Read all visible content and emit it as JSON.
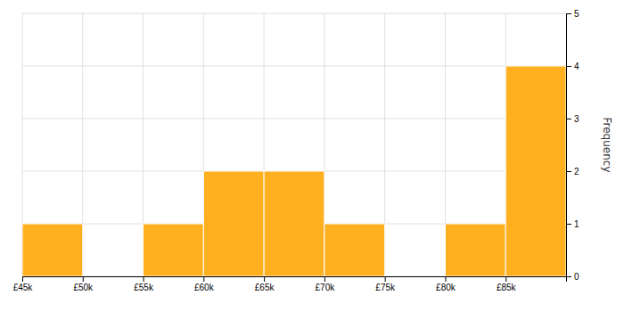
{
  "chart_data": {
    "type": "histogram",
    "bins": [
      45000,
      50000,
      55000,
      60000,
      65000,
      70000,
      75000,
      80000,
      85000,
      90000
    ],
    "values": [
      1,
      0,
      1,
      2,
      2,
      1,
      0,
      1,
      4
    ],
    "color": "#FFB020",
    "ylabel": "Frequency",
    "xlim": [
      45000,
      90000
    ],
    "xticks": [
      {
        "value": 45000,
        "label": "£45k"
      },
      {
        "value": 50000,
        "label": "£50k"
      },
      {
        "value": 55000,
        "label": "£55k"
      },
      {
        "value": 60000,
        "label": "£60k"
      },
      {
        "value": 65000,
        "label": "£65k"
      },
      {
        "value": 70000,
        "label": "£70k"
      },
      {
        "value": 75000,
        "label": "£75k"
      },
      {
        "value": 80000,
        "label": "£80k"
      },
      {
        "value": 85000,
        "label": "£85k"
      }
    ],
    "ylim": [
      0,
      5
    ],
    "yticks": [
      0,
      1,
      2,
      3,
      4,
      5
    ],
    "grid": true
  }
}
